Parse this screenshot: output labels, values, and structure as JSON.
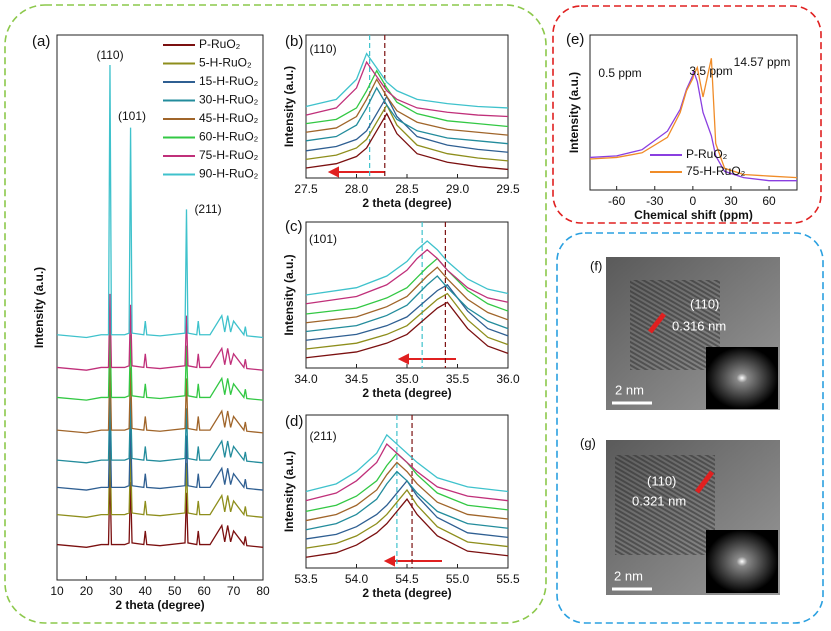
{
  "chart_data": [
    {
      "type": "line",
      "label": "(a)",
      "x_label": "2 theta (degree)",
      "y_label": "Intensity (a.u.)",
      "annotations": [
        "(110)",
        "(101)",
        "(211)"
      ],
      "legend": "upper-right",
      "xlim": [
        10,
        80
      ],
      "ylim": [
        0,
        100
      ],
      "xticks": [
        10,
        20,
        30,
        40,
        50,
        60,
        70,
        80
      ],
      "x": [
        10,
        20,
        25,
        27.5,
        28,
        28.5,
        33,
        34.5,
        35,
        35.5,
        39.5,
        40,
        40.5,
        45,
        53.5,
        54,
        54.5,
        57.5,
        58,
        58.5,
        62,
        66,
        67,
        68,
        69,
        70,
        73.5,
        74,
        74.5,
        80
      ],
      "series": [
        {
          "name": "P-RuO₂",
          "color": "#7b1010",
          "values": [
            6.5,
            6,
            6.5,
            6.5,
            20,
            6.5,
            6.5,
            6.8,
            18,
            6.8,
            6.5,
            9,
            6.5,
            6.3,
            6.8,
            16,
            6.8,
            6.5,
            9,
            6.5,
            6.5,
            10,
            7,
            10,
            7,
            9,
            6.5,
            8,
            6.3,
            6
          ]
        },
        {
          "name": "5-H-RuO₂",
          "color": "#8e8e1c",
          "values": [
            12,
            11.5,
            12,
            12,
            25.5,
            12,
            12,
            12.3,
            23.5,
            12.3,
            12,
            14.5,
            12,
            11.8,
            12.3,
            21.5,
            12.3,
            12,
            14.5,
            12,
            12,
            15.5,
            12.5,
            15.5,
            12.5,
            14.5,
            12,
            13.5,
            11.8,
            11.5
          ]
        },
        {
          "name": "15-H-RuO₂",
          "color": "#2f5f92",
          "values": [
            17,
            16.5,
            17,
            17,
            30.5,
            17,
            17,
            17.3,
            28.5,
            17.3,
            17,
            19.5,
            17,
            16.8,
            17.3,
            26.5,
            17.3,
            17,
            19.5,
            17,
            17,
            20.5,
            17.5,
            20.5,
            17.5,
            19.5,
            17,
            18.5,
            16.8,
            16.5
          ]
        },
        {
          "name": "30-H-RuO₂",
          "color": "#238c9c",
          "values": [
            22,
            21.5,
            22,
            22,
            35.5,
            22,
            22,
            22.3,
            33.5,
            22.3,
            22,
            24.5,
            22,
            21.8,
            22.3,
            31.5,
            22.3,
            22,
            24.5,
            22,
            22,
            25.5,
            22.5,
            25.5,
            22.5,
            24.5,
            22,
            23.5,
            21.8,
            21.5
          ]
        },
        {
          "name": "45-H-RuO₂",
          "color": "#a0652a",
          "values": [
            27.5,
            27,
            27.5,
            27.5,
            41,
            27.5,
            27.5,
            27.8,
            39,
            27.8,
            27.5,
            30,
            27.5,
            27.3,
            27.8,
            37,
            27.8,
            27.5,
            30,
            27.5,
            27.5,
            31,
            28,
            31,
            28,
            30,
            27.5,
            29,
            27.3,
            27
          ]
        },
        {
          "name": "60-H-RuO₂",
          "color": "#33c844",
          "values": [
            33.5,
            33,
            33.5,
            33.5,
            47,
            33.5,
            33.5,
            33.8,
            45,
            33.8,
            33.5,
            36,
            33.5,
            33.3,
            33.8,
            43,
            33.8,
            33.5,
            36,
            33.5,
            33.5,
            37,
            34,
            37,
            34,
            36,
            33.5,
            35,
            33.3,
            33
          ]
        },
        {
          "name": "75-H-RuO₂",
          "color": "#c0307a",
          "values": [
            39,
            38.5,
            39,
            39,
            52.5,
            39,
            39,
            39.3,
            50.5,
            39.3,
            39,
            41.5,
            39,
            38.8,
            39.3,
            48.5,
            39.3,
            39,
            41.5,
            39,
            39,
            42.5,
            39.5,
            42.5,
            39.5,
            41.5,
            39,
            40.5,
            38.8,
            38.5
          ]
        },
        {
          "name": "90-H-RuO₂",
          "color": "#3fc2cc",
          "values": [
            45,
            44.5,
            45,
            45,
            94.5,
            45,
            45,
            45.3,
            83,
            45.3,
            45,
            47.5,
            45,
            44.8,
            45.3,
            68,
            45.3,
            45,
            47.5,
            45,
            45,
            48.5,
            45.5,
            48.5,
            45.5,
            47.5,
            45,
            46.5,
            44.8,
            44.5
          ]
        }
      ]
    },
    {
      "type": "line",
      "label": "(b)",
      "x_label": "2 theta (degree)",
      "y_label": "Intensity (a.u.)",
      "annotations": [
        "(110)"
      ],
      "xlim": [
        27.5,
        29.5
      ],
      "ylim": [
        -5,
        95
      ],
      "xticks": [
        27.5,
        {
          "value": 28,
          "label": "28.0"
        },
        28.5,
        {
          "value": 29,
          "label": "29.0"
        },
        29.5
      ],
      "vlines": [
        {
          "x": 28.28,
          "color": "#7b1010"
        },
        {
          "x": 28.13,
          "color": "#3fc2cc"
        }
      ],
      "x": [
        27.5,
        27.8,
        28.0,
        28.1,
        28.2,
        28.3,
        28.4,
        28.6,
        28.9,
        29.2,
        29.5
      ],
      "series": [
        {
          "color": "#7b1010",
          "values": [
            2,
            5,
            10,
            16,
            28,
            40,
            26,
            12,
            6,
            3,
            1
          ]
        },
        {
          "color": "#8e8e1c",
          "values": [
            8,
            11,
            16,
            22,
            34,
            46,
            32,
            18,
            12,
            9,
            7
          ]
        },
        {
          "color": "#2f5f92",
          "values": [
            14,
            17,
            22,
            28,
            40,
            52,
            38,
            24,
            18,
            15,
            13
          ]
        },
        {
          "color": "#238c9c",
          "values": [
            21,
            24,
            32,
            44,
            58,
            46,
            36,
            28,
            23,
            21,
            19
          ]
        },
        {
          "color": "#a0652a",
          "values": [
            27,
            30,
            38,
            50,
            64,
            52,
            42,
            34,
            29,
            27,
            25
          ]
        },
        {
          "color": "#33c844",
          "values": [
            33,
            36,
            44,
            56,
            70,
            58,
            48,
            40,
            35,
            33,
            31
          ]
        },
        {
          "color": "#c0307a",
          "values": [
            39,
            44,
            58,
            76,
            66,
            56,
            50,
            44,
            41,
            39,
            38
          ]
        },
        {
          "color": "#3fc2cc",
          "values": [
            45,
            50,
            64,
            82,
            72,
            62,
            56,
            50,
            47,
            45,
            44
          ]
        }
      ]
    },
    {
      "type": "line",
      "label": "(c)",
      "x_label": "2 theta (degree)",
      "y_label": "Intensity (a.u.)",
      "annotations": [
        "(101)"
      ],
      "xlim": [
        34,
        36
      ],
      "ylim": [
        -5,
        95
      ],
      "xticks": [
        {
          "value": 34,
          "label": "34.0"
        },
        34.5,
        {
          "value": 35,
          "label": "35.0"
        },
        35.5,
        {
          "value": 36,
          "label": "36.0"
        }
      ],
      "vlines": [
        {
          "x": 35.38,
          "color": "#7b1010"
        },
        {
          "x": 35.15,
          "color": "#3fc2cc"
        }
      ],
      "x": [
        34,
        34.5,
        34.8,
        35,
        35.1,
        35.2,
        35.3,
        35.4,
        35.6,
        35.8,
        36
      ],
      "series": [
        {
          "color": "#7b1010",
          "values": [
            2,
            6,
            12,
            18,
            24,
            30,
            36,
            40,
            22,
            10,
            5
          ]
        },
        {
          "color": "#8e8e1c",
          "values": [
            8,
            12,
            18,
            24,
            30,
            36,
            42,
            46,
            28,
            16,
            11
          ]
        },
        {
          "color": "#2f5f92",
          "values": [
            14,
            18,
            24,
            30,
            36,
            42,
            48,
            52,
            34,
            22,
            17
          ]
        },
        {
          "color": "#238c9c",
          "values": [
            20,
            24,
            31,
            38,
            45,
            52,
            58,
            50,
            36,
            27,
            22
          ]
        },
        {
          "color": "#a0652a",
          "values": [
            26,
            30,
            37,
            44,
            51,
            58,
            64,
            56,
            42,
            33,
            28
          ]
        },
        {
          "color": "#33c844",
          "values": [
            32,
            36,
            43,
            50,
            57,
            64,
            70,
            62,
            48,
            39,
            34
          ]
        },
        {
          "color": "#c0307a",
          "values": [
            39,
            44,
            52,
            62,
            70,
            76,
            70,
            62,
            50,
            43,
            40
          ]
        },
        {
          "color": "#3fc2cc",
          "values": [
            45,
            50,
            58,
            68,
            76,
            82,
            76,
            68,
            56,
            49,
            46
          ]
        }
      ]
    },
    {
      "type": "line",
      "label": "(d)",
      "x_label": "2 theta (degree)",
      "y_label": "Intensity (a.u.)",
      "annotations": [
        "(211)"
      ],
      "xlim": [
        53.5,
        55.5
      ],
      "ylim": [
        -5,
        95
      ],
      "xticks": [
        53.5,
        {
          "value": 54,
          "label": "54.0"
        },
        54.5,
        {
          "value": 55,
          "label": "55.0"
        },
        55.5
      ],
      "vlines": [
        {
          "x": 54.55,
          "color": "#7b1010"
        },
        {
          "x": 54.4,
          "color": "#3fc2cc"
        }
      ],
      "x": [
        53.5,
        53.8,
        54.0,
        54.2,
        54.3,
        54.4,
        54.5,
        54.6,
        54.8,
        55.1,
        55.5
      ],
      "series": [
        {
          "color": "#7b1010",
          "values": [
            2,
            5,
            10,
            18,
            24,
            32,
            40,
            30,
            16,
            6,
            3
          ]
        },
        {
          "color": "#8e8e1c",
          "values": [
            8,
            11,
            16,
            24,
            30,
            38,
            46,
            36,
            22,
            12,
            9
          ]
        },
        {
          "color": "#2f5f92",
          "values": [
            14,
            17,
            22,
            30,
            36,
            44,
            52,
            42,
            28,
            18,
            15
          ]
        },
        {
          "color": "#238c9c",
          "values": [
            20,
            24,
            30,
            40,
            50,
            58,
            52,
            44,
            32,
            24,
            21
          ]
        },
        {
          "color": "#a0652a",
          "values": [
            26,
            30,
            36,
            46,
            56,
            64,
            58,
            50,
            38,
            30,
            27
          ]
        },
        {
          "color": "#33c844",
          "values": [
            32,
            36,
            42,
            52,
            62,
            70,
            64,
            56,
            44,
            36,
            33
          ]
        },
        {
          "color": "#c0307a",
          "values": [
            39,
            44,
            52,
            64,
            76,
            70,
            64,
            58,
            48,
            42,
            39
          ]
        },
        {
          "color": "#3fc2cc",
          "values": [
            45,
            50,
            58,
            70,
            82,
            76,
            70,
            64,
            54,
            48,
            45
          ]
        }
      ]
    },
    {
      "type": "line",
      "label": "(e)",
      "x_label": "Chemical shift (ppm)",
      "y_label": "Intensity (a.u.)",
      "annotations": [
        "3.5 ppm",
        "0.5 ppm",
        "14.57 ppm"
      ],
      "legend": "lower-left",
      "xlim": [
        -81,
        82
      ],
      "ylim": [
        0,
        100
      ],
      "xticks": [
        -60,
        -30,
        0,
        30,
        60
      ],
      "x": [
        -81,
        -60,
        -40,
        -20,
        -10,
        -5,
        0,
        0.5,
        3.5,
        8,
        14.57,
        18,
        25,
        40,
        60,
        82
      ],
      "series": [
        {
          "name": "P-RuO₂",
          "color": "#8a3fe0",
          "values": [
            21,
            22,
            26,
            38,
            52,
            65,
            74,
            77,
            70,
            50,
            35,
            22,
            12,
            8,
            6,
            6
          ]
        },
        {
          "name": "75-H-RuO₂",
          "color": "#f08c28",
          "values": [
            20,
            21,
            24,
            34,
            50,
            64,
            72,
            74,
            79,
            60,
            85,
            30,
            14,
            10,
            9,
            8
          ]
        }
      ]
    }
  ],
  "images": [
    {
      "label": "(f)",
      "plane": "(110)",
      "spacing": "0.316 nm",
      "scale": "2 nm"
    },
    {
      "label": "(g)",
      "plane": "(110)",
      "spacing": "0.321 nm",
      "scale": "2 nm"
    }
  ]
}
